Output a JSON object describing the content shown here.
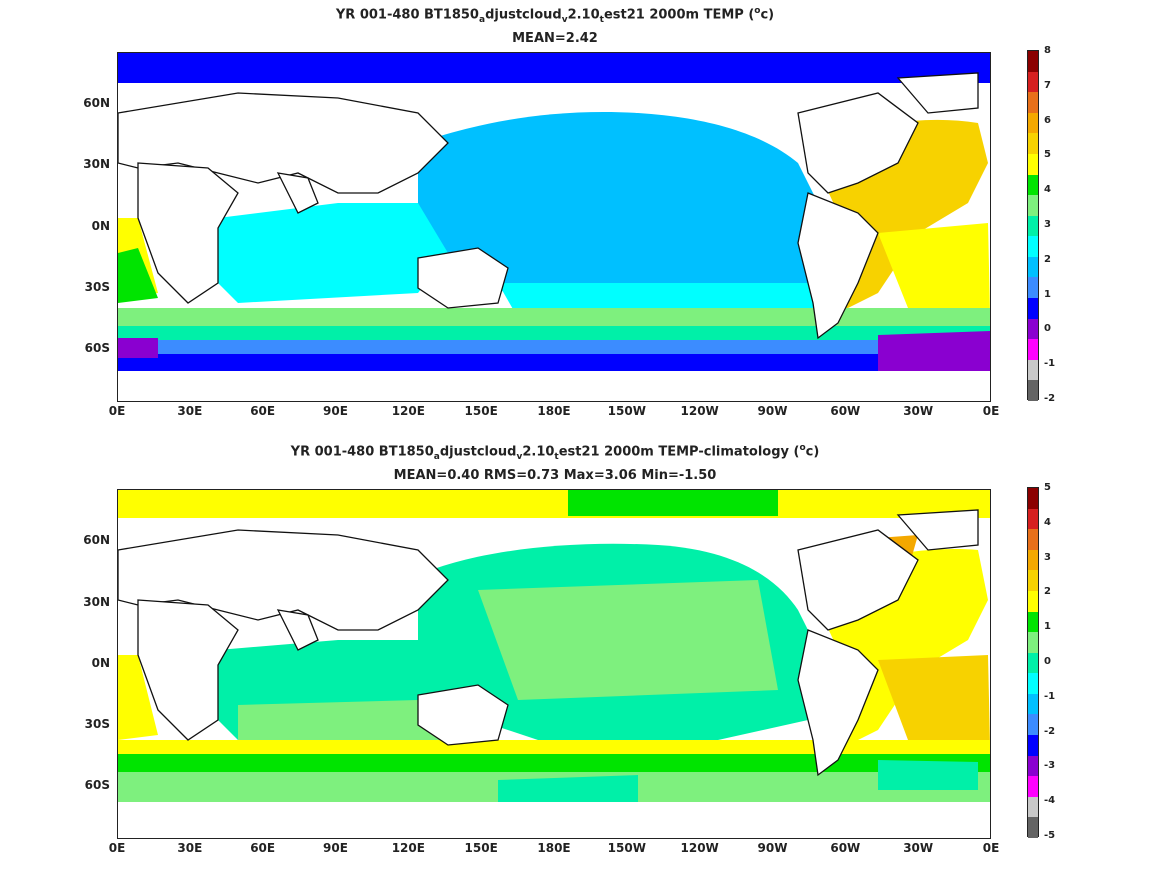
{
  "panels": [
    {
      "title_parts": [
        "YR 001-480 BT1850",
        "a",
        "djustcloud",
        "v",
        "2.10",
        "t",
        "est21 2000m TEMP ("
      ],
      "units": "o",
      "units_tail": "c)",
      "subtitle": "MEAN=2.42",
      "lat_ticks": [
        "60N",
        "30N",
        "0N",
        "30S",
        "60S"
      ],
      "lon_ticks": [
        "0E",
        "30E",
        "60E",
        "90E",
        "120E",
        "150E",
        "180E",
        "150W",
        "120W",
        "90W",
        "60W",
        "30W",
        "0E"
      ],
      "colorbar_labels": [
        "8",
        "7",
        "6",
        "5",
        "4",
        "3",
        "2",
        "1",
        "0",
        "-1",
        "-2"
      ],
      "colorbar_colors": [
        "#8b0000",
        "#d62020",
        "#e8701a",
        "#f4a800",
        "#f7d200",
        "#ffff00",
        "#00e400",
        "#7ef07e",
        "#00f0a8",
        "#00ffff",
        "#00c0ff",
        "#3c8cff",
        "#0000ff",
        "#8a00d0",
        "#ff00ff",
        "#c8c8c8",
        "#646464"
      ]
    },
    {
      "title_parts": [
        "YR 001-480 BT1850",
        "a",
        "djustcloud",
        "v",
        "2.10",
        "t",
        "est21 2000m TEMP-climatology ("
      ],
      "units": "o",
      "units_tail": "c)",
      "subtitle": "MEAN=0.40   RMS=0.73   Max=3.06   Min=-1.50",
      "lat_ticks": [
        "60N",
        "30N",
        "0N",
        "30S",
        "60S"
      ],
      "lon_ticks": [
        "0E",
        "30E",
        "60E",
        "90E",
        "120E",
        "150E",
        "180E",
        "150W",
        "120W",
        "90W",
        "60W",
        "30W",
        "0E"
      ],
      "colorbar_labels": [
        "5",
        "4",
        "3",
        "2",
        "1",
        "0",
        "-1",
        "-2",
        "-3",
        "-4",
        "-5"
      ],
      "colorbar_colors": [
        "#8b0000",
        "#d62020",
        "#e8701a",
        "#f4a800",
        "#f7d200",
        "#ffff00",
        "#00e400",
        "#7ef07e",
        "#00f0a8",
        "#00ffff",
        "#00c0ff",
        "#3c8cff",
        "#0000ff",
        "#8a00d0",
        "#ff00ff",
        "#c8c8c8",
        "#646464"
      ]
    }
  ]
}
